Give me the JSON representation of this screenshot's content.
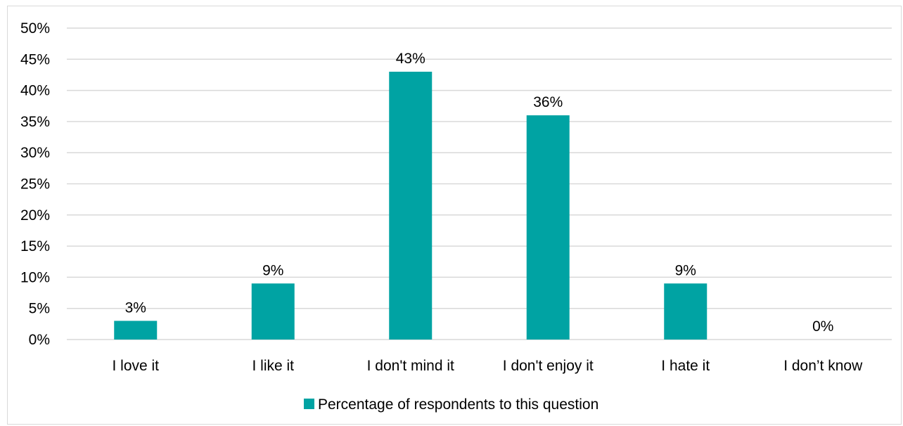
{
  "chart_data": {
    "type": "bar",
    "categories": [
      "I love it",
      "I like it",
      "I don't mind it",
      "I don't enjoy it",
      "I hate it",
      "I don’t know"
    ],
    "series": [
      {
        "name": "Percentage of respondents to this question",
        "values": [
          3,
          9,
          43,
          36,
          9,
          0
        ],
        "data_labels": [
          "3%",
          "9%",
          "43%",
          "36%",
          "9%",
          "0%"
        ]
      }
    ],
    "ylim": [
      0,
      50
    ],
    "yticks": [
      0,
      5,
      10,
      15,
      20,
      25,
      30,
      35,
      40,
      45,
      50
    ],
    "ytick_labels": [
      "0%",
      "5%",
      "10%",
      "15%",
      "20%",
      "25%",
      "30%",
      "35%",
      "40%",
      "45%",
      "50%"
    ],
    "grid": true,
    "legend_position": "bottom",
    "colors": {
      "bar": "#00A3A3",
      "grid": "#d9d9d9",
      "axis": "#d9d9d9"
    }
  }
}
